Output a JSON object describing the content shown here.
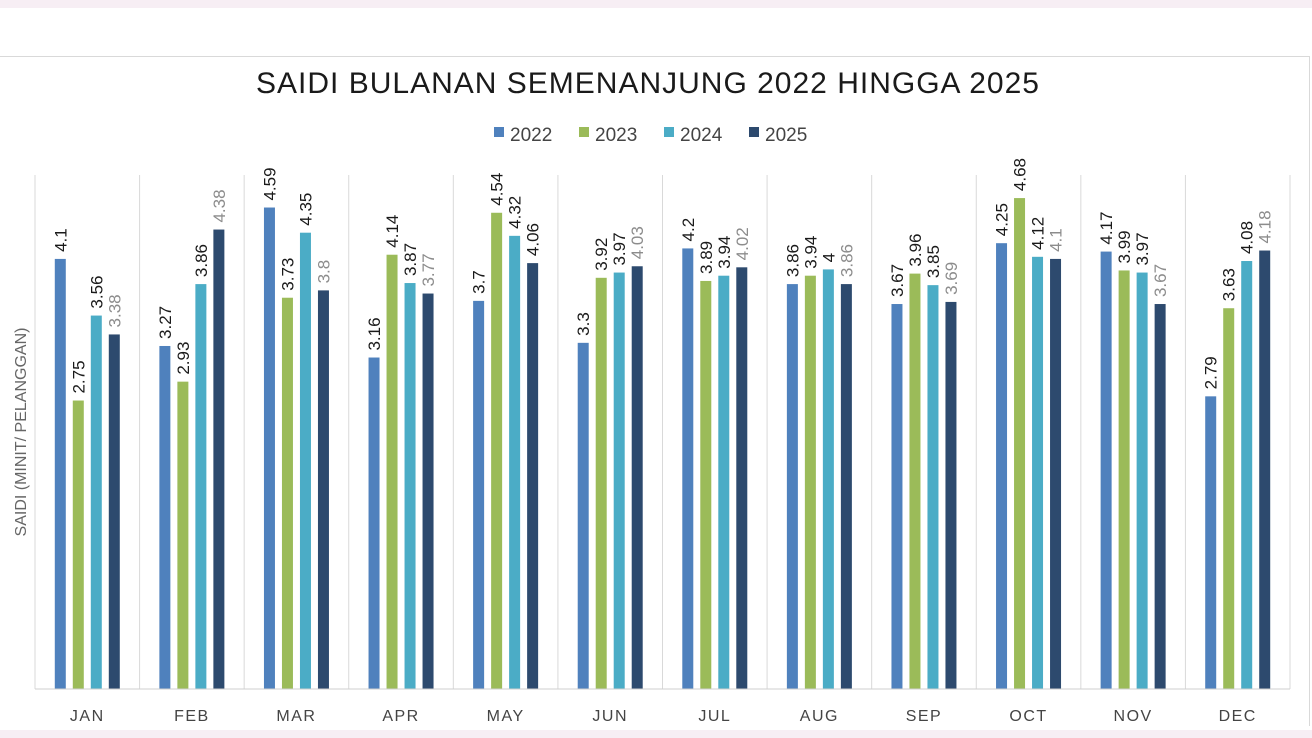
{
  "chart_data": {
    "type": "bar",
    "title": "SAIDI BULANAN SEMENANJUNG 2022 HINGGA 2025",
    "xlabel": "",
    "ylabel": "SAIDI (MINIT/ PELANGGAN)",
    "ylim": [
      0,
      4.9
    ],
    "legend_position": "top-center",
    "categories": [
      "JAN",
      "FEB",
      "MAR",
      "APR",
      "MAY",
      "JUN",
      "JUL",
      "AUG",
      "SEP",
      "OCT",
      "NOV",
      "DEC"
    ],
    "series": [
      {
        "name": "2022",
        "color": "#4f81bd",
        "values": [
          4.1,
          3.27,
          4.59,
          3.16,
          3.7,
          3.3,
          4.2,
          3.86,
          3.67,
          4.25,
          4.17,
          2.79
        ]
      },
      {
        "name": "2023",
        "color": "#9bbb59",
        "values": [
          2.75,
          2.93,
          3.73,
          4.14,
          4.54,
          3.92,
          3.89,
          3.94,
          3.96,
          4.68,
          3.99,
          3.63
        ]
      },
      {
        "name": "2024",
        "color": "#4bacc6",
        "values": [
          3.56,
          3.86,
          4.35,
          3.87,
          4.32,
          3.97,
          3.94,
          4,
          3.85,
          4.12,
          3.97,
          4.08
        ]
      },
      {
        "name": "2025",
        "color": "#2d4a6e",
        "values": [
          3.38,
          4.38,
          3.8,
          3.77,
          4.06,
          4.03,
          4.02,
          3.86,
          3.69,
          4.1,
          3.67,
          4.18
        ]
      }
    ],
    "label_text": [
      [
        "4.1",
        "2.75",
        "3.56",
        "3.38"
      ],
      [
        "3.27",
        "2.93",
        "3.86",
        "4.38"
      ],
      [
        "4.59",
        "3.73",
        "4.35",
        "3.8"
      ],
      [
        "3.16",
        "4.14",
        "3.87",
        "3.77"
      ],
      [
        "3.7",
        "4.54",
        "4.32",
        "4.06"
      ],
      [
        "3.3",
        "3.92",
        "3.97",
        "4.03"
      ],
      [
        "4.2",
        "3.89",
        "3.94",
        "4.02"
      ],
      [
        "3.86",
        "3.94",
        "4",
        "3.86"
      ],
      [
        "3.67",
        "3.96",
        "3.85",
        "3.69"
      ],
      [
        "4.25",
        "4.68",
        "4.12",
        "4.1"
      ],
      [
        "4.17",
        "3.99",
        "3.97",
        "3.67"
      ],
      [
        "2.79",
        "3.63",
        "4.08",
        "4.18"
      ]
    ],
    "muted_labels": [
      [
        false,
        false,
        false,
        true
      ],
      [
        false,
        false,
        false,
        true
      ],
      [
        false,
        false,
        false,
        true
      ],
      [
        false,
        false,
        false,
        true
      ],
      [
        false,
        false,
        false,
        false
      ],
      [
        false,
        false,
        false,
        true
      ],
      [
        false,
        false,
        false,
        true
      ],
      [
        false,
        false,
        false,
        true
      ],
      [
        false,
        false,
        false,
        true
      ],
      [
        false,
        false,
        false,
        true
      ],
      [
        false,
        false,
        false,
        true
      ],
      [
        false,
        false,
        false,
        true
      ]
    ],
    "gridlines": "vertical-category-separators"
  }
}
